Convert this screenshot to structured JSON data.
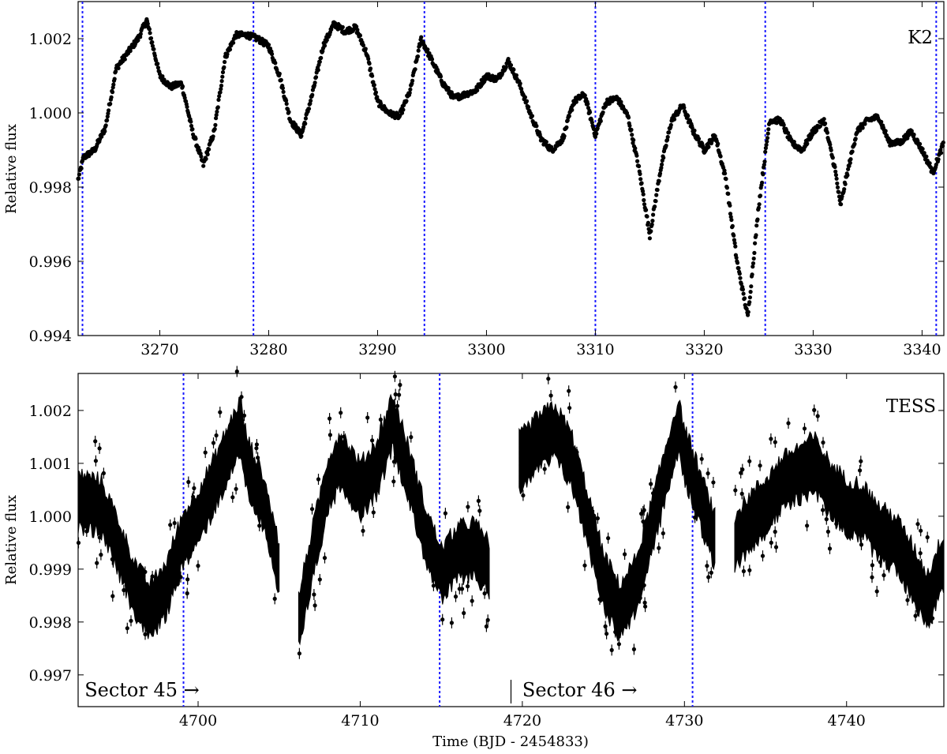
{
  "chart_data": [
    {
      "type": "scatter",
      "panel_label": "K2",
      "xlabel": "",
      "ylabel": "Relative flux",
      "xlim": [
        3262.5,
        3342
      ],
      "ylim": [
        0.994,
        1.003
      ],
      "xticks": [
        3270,
        3280,
        3290,
        3300,
        3310,
        3320,
        3330,
        3340
      ],
      "yticks": [
        0.994,
        0.996,
        0.998,
        1.0,
        1.002
      ],
      "ytick_labels": [
        "0.994",
        "0.996",
        "0.998",
        "1.000",
        "1.002"
      ],
      "marker_color": "#000000",
      "vline_color": "#1a1aff",
      "vlines": [
        3262.9,
        3278.6,
        3294.3,
        3310.0,
        3325.6,
        3341.3
      ],
      "curve_x": [
        3262.5,
        3263,
        3264,
        3265,
        3266,
        3267,
        3268,
        3268.8,
        3270,
        3271,
        3272,
        3273,
        3274,
        3275,
        3276,
        3277,
        3278,
        3279,
        3280,
        3281,
        3282,
        3283,
        3284,
        3285,
        3286,
        3287,
        3288,
        3289,
        3290,
        3291,
        3292,
        3293,
        3294,
        3295,
        3296,
        3297,
        3298,
        3299,
        3300,
        3301,
        3302,
        3303,
        3304,
        3305,
        3306,
        3307,
        3308,
        3309,
        3310,
        3311,
        3312,
        3313,
        3314,
        3315,
        3316,
        3317,
        3318,
        3319,
        3320,
        3321,
        3322,
        3323,
        3324,
        3325,
        3326,
        3327,
        3328,
        3329,
        3330,
        3331,
        3332,
        3332.5,
        3333,
        3334,
        3335,
        3336,
        3337,
        3338,
        3339,
        3340,
        3341,
        3342
      ],
      "curve_y": [
        0.9982,
        0.9988,
        0.999,
        0.9996,
        1.0012,
        1.0016,
        1.002,
        1.0025,
        1.001,
        1.0007,
        1.0008,
        0.9995,
        0.9986,
        0.9995,
        1.0015,
        1.0021,
        1.0021,
        1.002,
        1.0018,
        1.001,
        0.9998,
        0.9994,
        1.0005,
        1.0018,
        1.0024,
        1.0022,
        1.0023,
        1.0016,
        1.0003,
        1.0,
        0.9999,
        1.0006,
        1.002,
        1.0014,
        1.0008,
        1.0004,
        1.0005,
        1.0006,
        1.001,
        1.0009,
        1.0014,
        1.0008,
        1.0,
        0.9993,
        0.999,
        0.9993,
        1.0003,
        1.0005,
        0.9994,
        1.0003,
        1.0004,
        0.9999,
        0.9985,
        0.9967,
        0.9985,
        0.9998,
        1.0002,
        0.9995,
        0.999,
        0.9994,
        0.9982,
        0.996,
        0.9945,
        0.9975,
        0.9998,
        0.9998,
        0.9992,
        0.999,
        0.9995,
        0.9998,
        0.9985,
        0.9975,
        0.9982,
        0.9995,
        0.9998,
        0.9999,
        0.9992,
        0.9992,
        0.9995,
        0.999,
        0.9984,
        0.9992
      ]
    },
    {
      "type": "scatter",
      "panel_label": "TESS",
      "xlabel": "Time (BJD - 2454833)",
      "ylabel": "Relative flux",
      "xlim": [
        4692.6,
        4746
      ],
      "ylim": [
        0.9964,
        1.0027
      ],
      "xticks": [
        4700,
        4710,
        4720,
        4730,
        4740
      ],
      "yticks": [
        0.997,
        0.998,
        0.999,
        1.0,
        1.001,
        1.002
      ],
      "ytick_labels": [
        "0.997",
        "0.998",
        "0.999",
        "1.000",
        "1.001",
        "1.002"
      ],
      "marker_color": "#000000",
      "vline_color": "#1a1aff",
      "vlines": [
        4699.1,
        4714.9,
        4730.5
      ],
      "sector_divider_x": 4719.3,
      "sector_labels": [
        "Sector 45 →",
        "Sector 46 →"
      ],
      "sector_label_x": [
        4693.0,
        4720.0
      ],
      "band_halfwidth": 0.0005,
      "segments": [
        {
          "x": [
            4692.6,
            4694,
            4695,
            4696,
            4697,
            4698,
            4699,
            4700,
            4701,
            4702,
            4702.6,
            4703,
            4704,
            4705
          ],
          "y": [
            1.0003,
            1.0002,
            0.9995,
            0.9987,
            0.9982,
            0.9986,
            0.9995,
            1.0,
            1.0006,
            1.0013,
            1.0017,
            1.001,
            1.0003,
            0.999
          ]
        },
        {
          "x": [
            4706.2,
            4707,
            4708,
            4708.8,
            4710,
            4711,
            4712,
            4713,
            4714,
            4715,
            4716,
            4717,
            4718
          ],
          "y": [
            0.998,
            0.9992,
            1.0006,
            1.0011,
            1.0005,
            1.0009,
            1.0018,
            1.0008,
            0.9997,
            0.9989,
            0.9993,
            0.9994,
            0.999
          ]
        },
        {
          "x": [
            4719.8,
            4721,
            4722,
            4723,
            4724,
            4725,
            4726,
            4727,
            4728,
            4729,
            4729.6,
            4730,
            4731,
            4731.9
          ],
          "y": [
            1.001,
            1.0014,
            1.0016,
            1.0011,
            1.0,
            0.9988,
            0.9982,
            0.9987,
            0.9998,
            1.001,
            1.0017,
            1.0012,
            1.0003,
            0.9995
          ]
        },
        {
          "x": [
            4733.1,
            4734,
            4735,
            4736,
            4737,
            4738,
            4739,
            4740,
            4741,
            4742,
            4743,
            4744,
            4745,
            4746
          ],
          "y": [
            0.9995,
            0.9999,
            1.0002,
            1.0006,
            1.0008,
            1.001,
            1.0005,
            1.0002,
            1.0001,
            0.9997,
            0.9995,
            0.999,
            0.9984,
            0.9992
          ]
        }
      ]
    }
  ]
}
